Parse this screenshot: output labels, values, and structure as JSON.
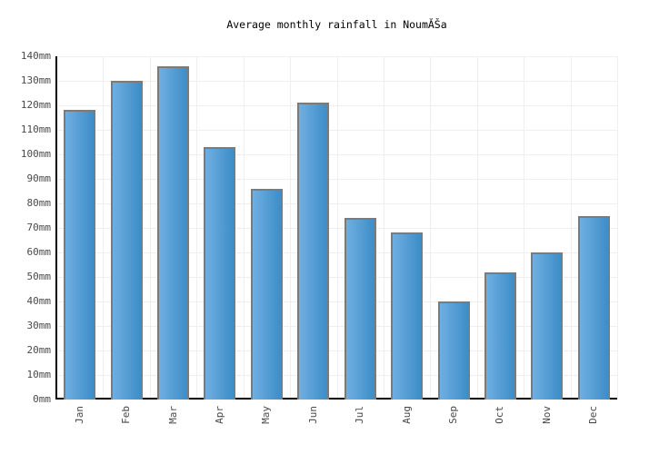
{
  "chart_data": {
    "type": "bar",
    "title": "Average monthly rainfall in NoumĂŠa",
    "categories": [
      "Jan",
      "Feb",
      "Mar",
      "Apr",
      "May",
      "Jun",
      "Jul",
      "Aug",
      "Sep",
      "Oct",
      "Nov",
      "Dec"
    ],
    "values": [
      118,
      130,
      136,
      103,
      86,
      121,
      74,
      68,
      40,
      52,
      60,
      75
    ],
    "unit": "mm",
    "xlabel": "",
    "ylabel": "",
    "ylim": [
      0,
      140
    ],
    "ytick_step": 10,
    "ytick_labels": [
      "0mm",
      "10mm",
      "20mm",
      "30mm",
      "40mm",
      "50mm",
      "60mm",
      "70mm",
      "80mm",
      "90mm",
      "100mm",
      "110mm",
      "120mm",
      "130mm",
      "140mm"
    ],
    "grid": true,
    "legend": "none",
    "colors": {
      "bar_gradient_left": "#6fafe2",
      "bar_gradient_right": "#3d8dc7",
      "bar_border": "#7b7b7b",
      "gridline": "#efefef",
      "axis": "#000000",
      "tick_label": "#4a4a4a",
      "title": "#000000",
      "background": "#ffffff"
    }
  }
}
